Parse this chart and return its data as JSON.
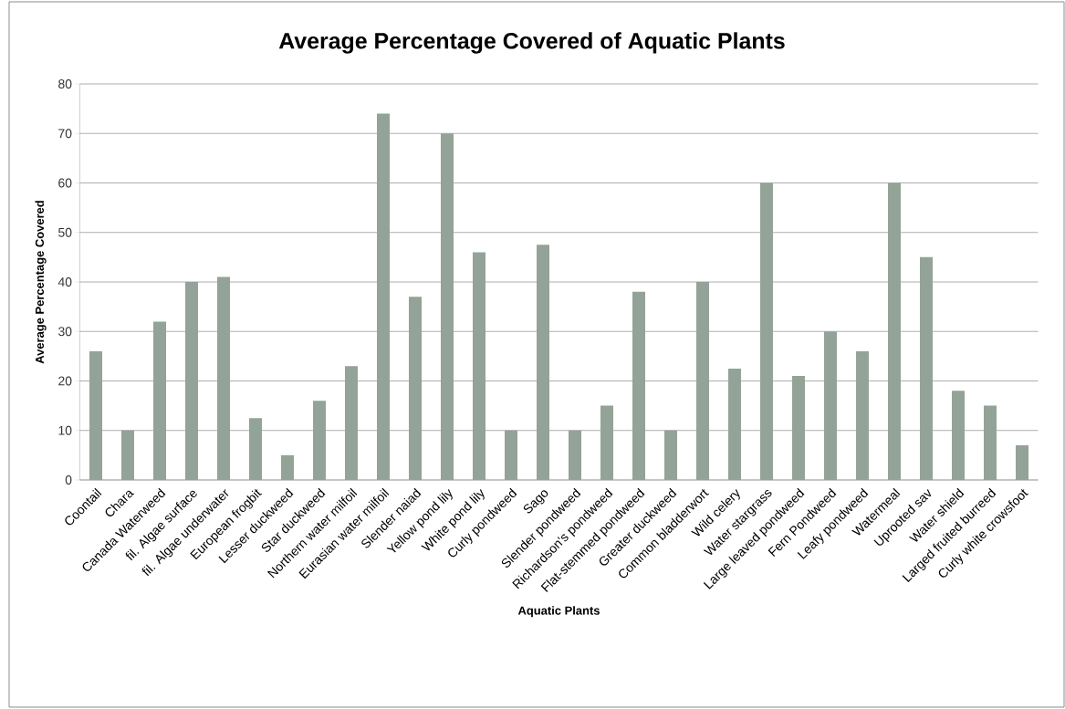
{
  "chart_data": {
    "type": "bar",
    "title": "Average Percentage Covered of Aquatic Plants",
    "xlabel": "Aquatic Plants",
    "ylabel": "Average Percentage Covered",
    "categories": [
      "Coontail",
      "Chara",
      "Canada Waterweed",
      "fil. Algae surface",
      "fil. Algae underwater",
      "European frogbit",
      "Lesser duckweed",
      "Star duckweed",
      "Northern water milfoil",
      "Eurasian water milfoil",
      "Slender naiad",
      "Yellow pond lily",
      "White pond lily",
      "Curly pondweed",
      "Sago",
      "Slender pondweed",
      "Richardson's pondweed",
      "Flat-stemmed pondweed",
      "Greater duckweed",
      "Common bladderwort",
      "Wild celery",
      "Water stargrass",
      "Large leaved pondweed",
      "Fern Pondweed",
      "Leafy pondweed",
      "Watermeal",
      "Uprooted sav",
      "Water shield",
      "Larged fruited burreed",
      "Curly white crowsfoot"
    ],
    "values": [
      26,
      10,
      32,
      40,
      41,
      12.5,
      5,
      16,
      23,
      74,
      37,
      70,
      46,
      10,
      47.5,
      10,
      15,
      38,
      10,
      40,
      22.5,
      60,
      21,
      30,
      26,
      60,
      45,
      18,
      15,
      7
    ],
    "color": "#93a397",
    "ylim": [
      0,
      80
    ],
    "yticks": [
      0,
      10,
      20,
      30,
      40,
      50,
      60,
      70,
      80
    ],
    "grid": "y"
  }
}
